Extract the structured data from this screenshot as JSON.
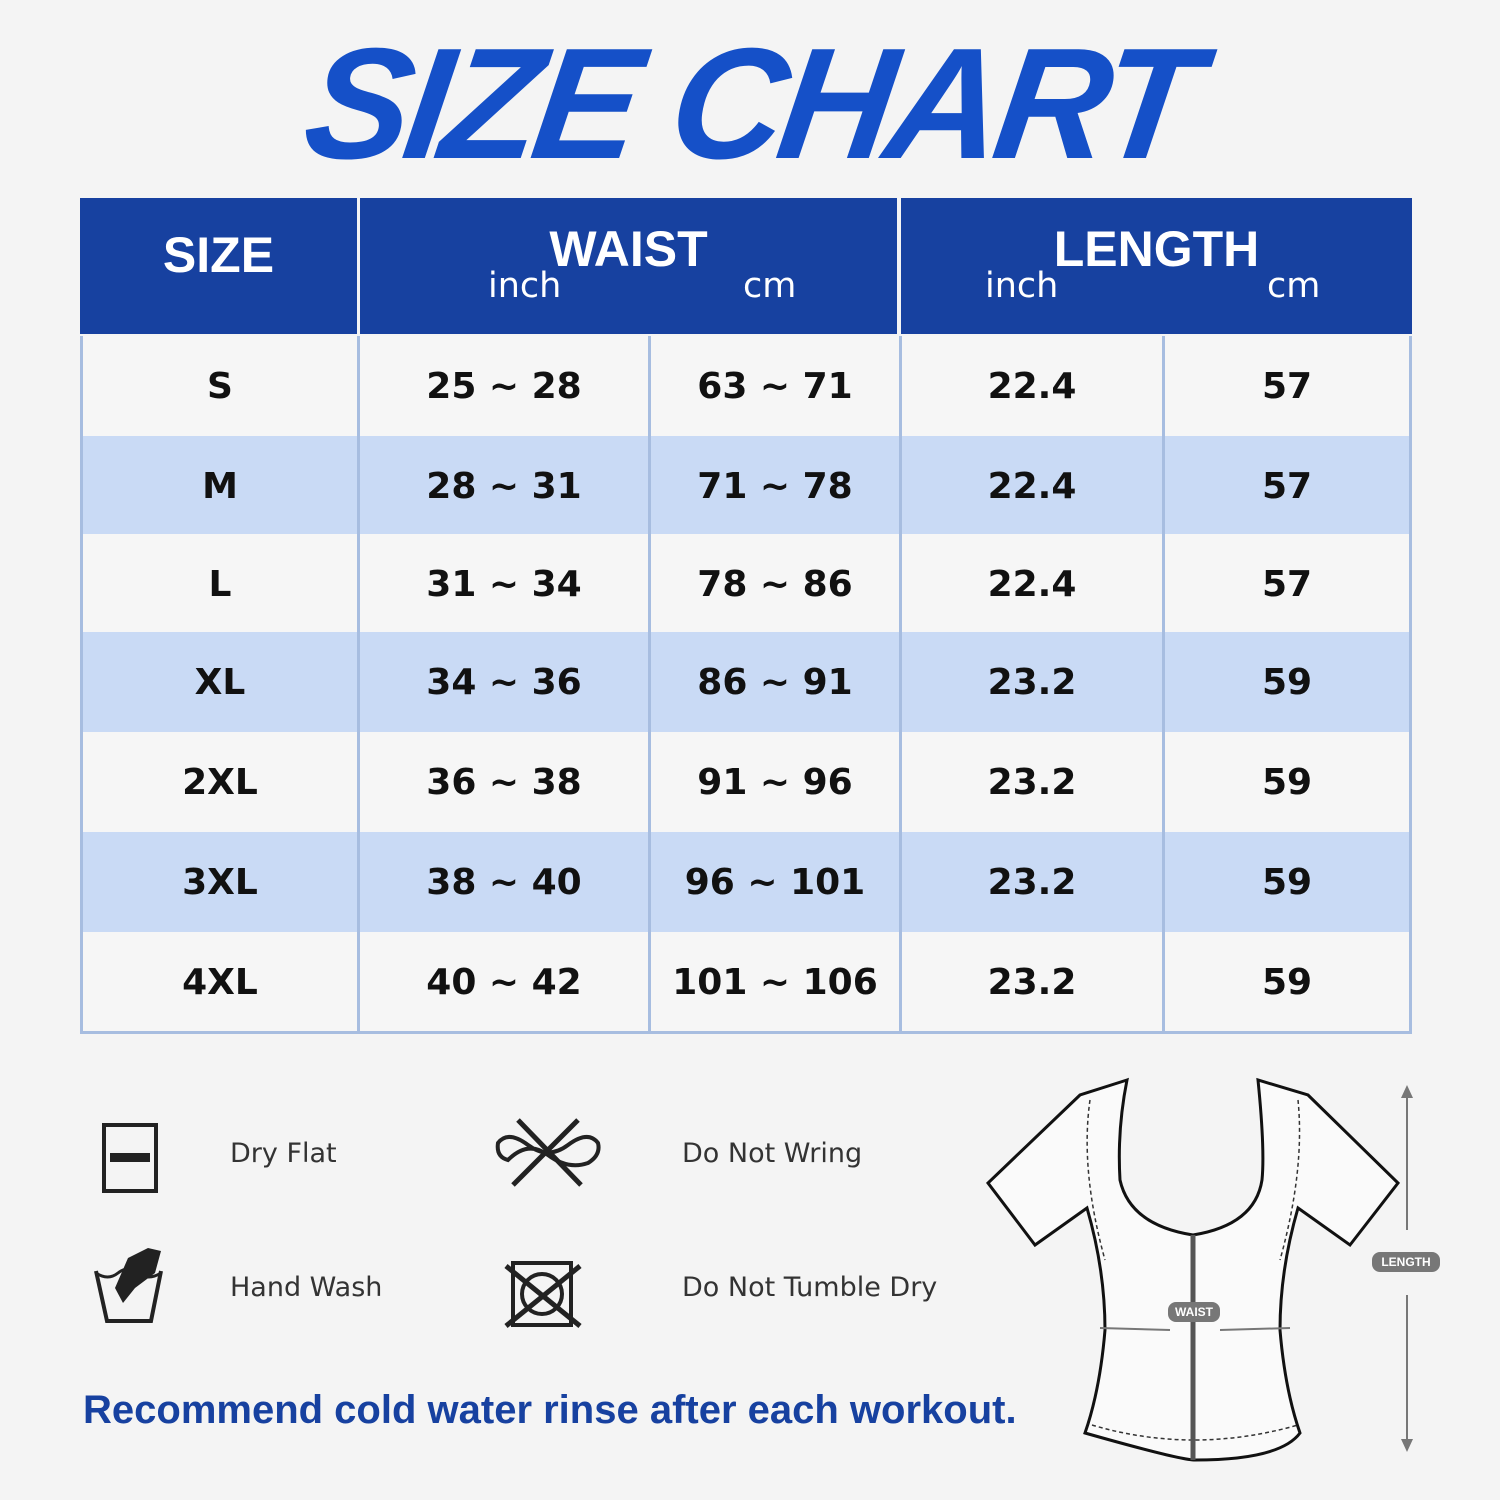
{
  "title": "SIZE CHART",
  "colors": {
    "header": "#1741a0",
    "alt_row": "#c9daf5",
    "row": "#f6f6f6",
    "title": "#1550c8"
  },
  "headers": {
    "size": "SIZE",
    "waist": "WAIST",
    "length": "LENGTH",
    "waist_inch": "inch",
    "waist_cm": "cm",
    "length_inch": "inch",
    "length_cm": "cm"
  },
  "rows": [
    {
      "size": "S",
      "waist_inch": "25 ~ 28",
      "waist_cm": "63 ~ 71",
      "length_inch": "22.4",
      "length_cm": "57"
    },
    {
      "size": "M",
      "waist_inch": "28 ~ 31",
      "waist_cm": "71 ~ 78",
      "length_inch": "22.4",
      "length_cm": "57"
    },
    {
      "size": "L",
      "waist_inch": "31 ~ 34",
      "waist_cm": "78 ~ 86",
      "length_inch": "22.4",
      "length_cm": "57"
    },
    {
      "size": "XL",
      "waist_inch": "34 ~ 36",
      "waist_cm": "86 ~ 91",
      "length_inch": "23.2",
      "length_cm": "59"
    },
    {
      "size": "2XL",
      "waist_inch": "36 ~ 38",
      "waist_cm": "91 ~ 96",
      "length_inch": "23.2",
      "length_cm": "59"
    },
    {
      "size": "3XL",
      "waist_inch": "38 ~ 40",
      "waist_cm": "96 ~ 101",
      "length_inch": "23.2",
      "length_cm": "59"
    },
    {
      "size": "4XL",
      "waist_inch": "40 ~ 42",
      "waist_cm": "101 ~ 106",
      "length_inch": "23.2",
      "length_cm": "59"
    }
  ],
  "care": [
    {
      "icon": "dry-flat-icon",
      "label": "Dry Flat"
    },
    {
      "icon": "do-not-wring-icon",
      "label": "Do Not Wring"
    },
    {
      "icon": "hand-wash-icon",
      "label": "Hand Wash"
    },
    {
      "icon": "do-not-tumble-dry-icon",
      "label": "Do Not Tumble Dry"
    }
  ],
  "note": "Recommend cold water rinse after each workout.",
  "diagram": {
    "waist_label": "WAIST",
    "length_label": "LENGTH"
  }
}
